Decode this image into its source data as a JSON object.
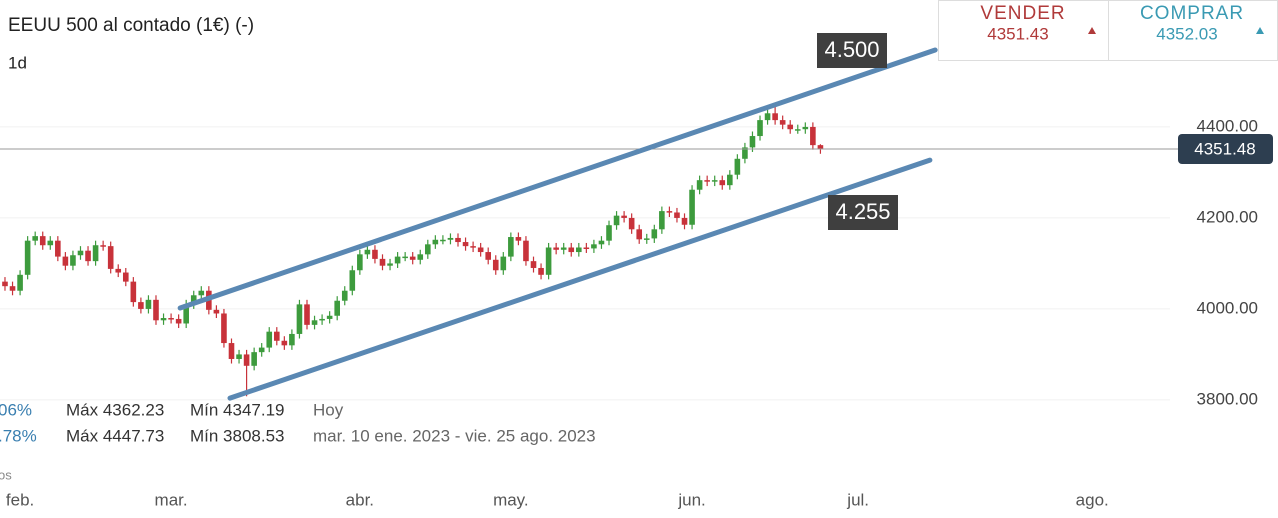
{
  "chart_data": {
    "type": "candlestick",
    "title": "EEUU 500 al contado (1€) (-)",
    "interval": "1d",
    "up_color": "#3d9b3d",
    "down_color": "#c8323a",
    "grid": true,
    "xlim": [
      -0.66,
      154.3
    ],
    "xticks": [
      {
        "value": 2,
        "label": "feb."
      },
      {
        "value": 22,
        "label": "mar."
      },
      {
        "value": 47,
        "label": "abr."
      },
      {
        "value": 67,
        "label": "may."
      },
      {
        "value": 91,
        "label": "jun."
      },
      {
        "value": 113,
        "label": "jul."
      },
      {
        "value": 144,
        "label": "ago."
      }
    ],
    "ylim": [
      3613,
      4679
    ],
    "yticks": [
      {
        "value": 3800,
        "label": "3800.00"
      },
      {
        "value": 4000,
        "label": "4000.00"
      },
      {
        "value": 4200,
        "label": "4200.00"
      },
      {
        "value": 4400,
        "label": "4400.00"
      }
    ],
    "last_price": 4351.48,
    "channels": [
      {
        "label": "4.500",
        "color": "#5a88b3",
        "x": [
          23.2,
          123.2
        ],
        "y": [
          4002,
          4569
        ]
      },
      {
        "label": "4.255",
        "color": "#5a88b3",
        "x": [
          29.8,
          122.5
        ],
        "y": [
          3804,
          4327
        ]
      }
    ],
    "candles": {
      "open": [
        4060,
        4050,
        4040,
        4075,
        4150,
        4160,
        4140,
        4150,
        4115,
        4095,
        4118,
        4128,
        4105,
        4140,
        4138,
        4088,
        4080,
        4060,
        4015,
        4000,
        4020,
        3975,
        3980,
        3978,
        3968,
        4010,
        4030,
        4040,
        3998,
        3990,
        3925,
        3890,
        3900,
        3875,
        3905,
        3915,
        3950,
        3930,
        3920,
        3945,
        4010,
        3965,
        3975,
        3978,
        3985,
        4018,
        4040,
        4085,
        4120,
        4130,
        4110,
        4095,
        4100,
        4115,
        4115,
        4108,
        4120,
        4142,
        4152,
        4152,
        4156,
        4147,
        4138,
        4135,
        4125,
        4108,
        4085,
        4115,
        4158,
        4150,
        4105,
        4090,
        4075,
        4135,
        4130,
        4135,
        4125,
        4135,
        4133,
        4142,
        4150,
        4184,
        4205,
        4200,
        4175,
        4153,
        4155,
        4175,
        4215,
        4212,
        4200,
        4185,
        4262,
        4283,
        4280,
        4283,
        4272,
        4295,
        4330,
        4355,
        4380,
        4415,
        4430,
        4415,
        4405,
        4395,
        4395,
        4400,
        4360
      ],
      "high": [
        4070,
        4060,
        4085,
        4160,
        4170,
        4170,
        4160,
        4160,
        4125,
        4128,
        4138,
        4138,
        4150,
        4150,
        4148,
        4098,
        4090,
        4070,
        4025,
        4030,
        4030,
        3990,
        3990,
        3988,
        4020,
        4040,
        4050,
        4050,
        4008,
        4000,
        3935,
        3910,
        3910,
        3915,
        3925,
        3960,
        3960,
        3940,
        3955,
        4020,
        4020,
        3985,
        3988,
        3995,
        4028,
        4050,
        4095,
        4130,
        4140,
        4140,
        4120,
        4110,
        4125,
        4125,
        4125,
        4130,
        4152,
        4162,
        4162,
        4166,
        4166,
        4157,
        4148,
        4145,
        4135,
        4118,
        4125,
        4168,
        4168,
        4160,
        4115,
        4100,
        4145,
        4145,
        4145,
        4145,
        4145,
        4145,
        4152,
        4160,
        4194,
        4215,
        4215,
        4210,
        4185,
        4165,
        4185,
        4225,
        4225,
        4222,
        4210,
        4272,
        4293,
        4293,
        4293,
        4293,
        4305,
        4340,
        4365,
        4390,
        4425,
        4440,
        4448,
        4425,
        4415,
        4405,
        4410,
        4410,
        4362
      ],
      "low": [
        4040,
        4030,
        4030,
        4065,
        4140,
        4130,
        4130,
        4105,
        4085,
        4085,
        4108,
        4095,
        4095,
        4128,
        4078,
        4070,
        4050,
        4005,
        3990,
        3990,
        3965,
        3965,
        3968,
        3958,
        3958,
        4000,
        4020,
        3988,
        3980,
        3915,
        3880,
        3880,
        3808,
        3865,
        3895,
        3905,
        3920,
        3910,
        3910,
        3935,
        3955,
        3955,
        3965,
        3968,
        3975,
        4008,
        4030,
        4075,
        4110,
        4100,
        4085,
        4085,
        4090,
        4105,
        4098,
        4098,
        4110,
        4132,
        4142,
        4142,
        4137,
        4128,
        4125,
        4115,
        4098,
        4075,
        4075,
        4105,
        4140,
        4095,
        4080,
        4065,
        4065,
        4120,
        4120,
        4115,
        4115,
        4123,
        4123,
        4132,
        4140,
        4174,
        4190,
        4165,
        4143,
        4143,
        4145,
        4165,
        4202,
        4190,
        4175,
        4175,
        4252,
        4270,
        4270,
        4262,
        4262,
        4285,
        4320,
        4345,
        4370,
        4405,
        4405,
        4395,
        4385,
        4385,
        4385,
        4350,
        4341
      ],
      "close": [
        4050,
        4040,
        4075,
        4150,
        4160,
        4140,
        4150,
        4115,
        4095,
        4118,
        4128,
        4105,
        4140,
        4138,
        4088,
        4080,
        4060,
        4015,
        4000,
        4020,
        3975,
        3980,
        3978,
        3968,
        4010,
        4030,
        4040,
        3998,
        3990,
        3925,
        3890,
        3900,
        3875,
        3905,
        3915,
        3950,
        3930,
        3920,
        3945,
        4010,
        3965,
        3975,
        3978,
        3985,
        4018,
        4040,
        4085,
        4120,
        4130,
        4110,
        4095,
        4100,
        4115,
        4115,
        4108,
        4120,
        4142,
        4152,
        4152,
        4156,
        4147,
        4138,
        4135,
        4125,
        4108,
        4085,
        4115,
        4158,
        4150,
        4105,
        4090,
        4075,
        4135,
        4130,
        4135,
        4125,
        4135,
        4133,
        4142,
        4150,
        4184,
        4205,
        4200,
        4175,
        4153,
        4155,
        4175,
        4215,
        4212,
        4200,
        4185,
        4262,
        4283,
        4280,
        4283,
        4272,
        4295,
        4330,
        4355,
        4380,
        4415,
        4430,
        4415,
        4405,
        4395,
        4395,
        4400,
        4360,
        4351
      ]
    }
  },
  "quote": {
    "sell_label": "VENDER",
    "sell_price": 4351.43,
    "buy_label": "COMPRAR",
    "buy_price": 4352.03
  },
  "stats": [
    {
      "change": "06%",
      "max": "Máx 4362.23",
      "min": "Mín 4347.19",
      "period": "Hoy"
    },
    {
      "change": ".78%",
      "max": "Máx 4447.73",
      "min": "Mín 3808.53",
      "period": "mar. 10 ene. 2023 - vie. 25 ago. 2023"
    }
  ],
  "footnote": "os"
}
